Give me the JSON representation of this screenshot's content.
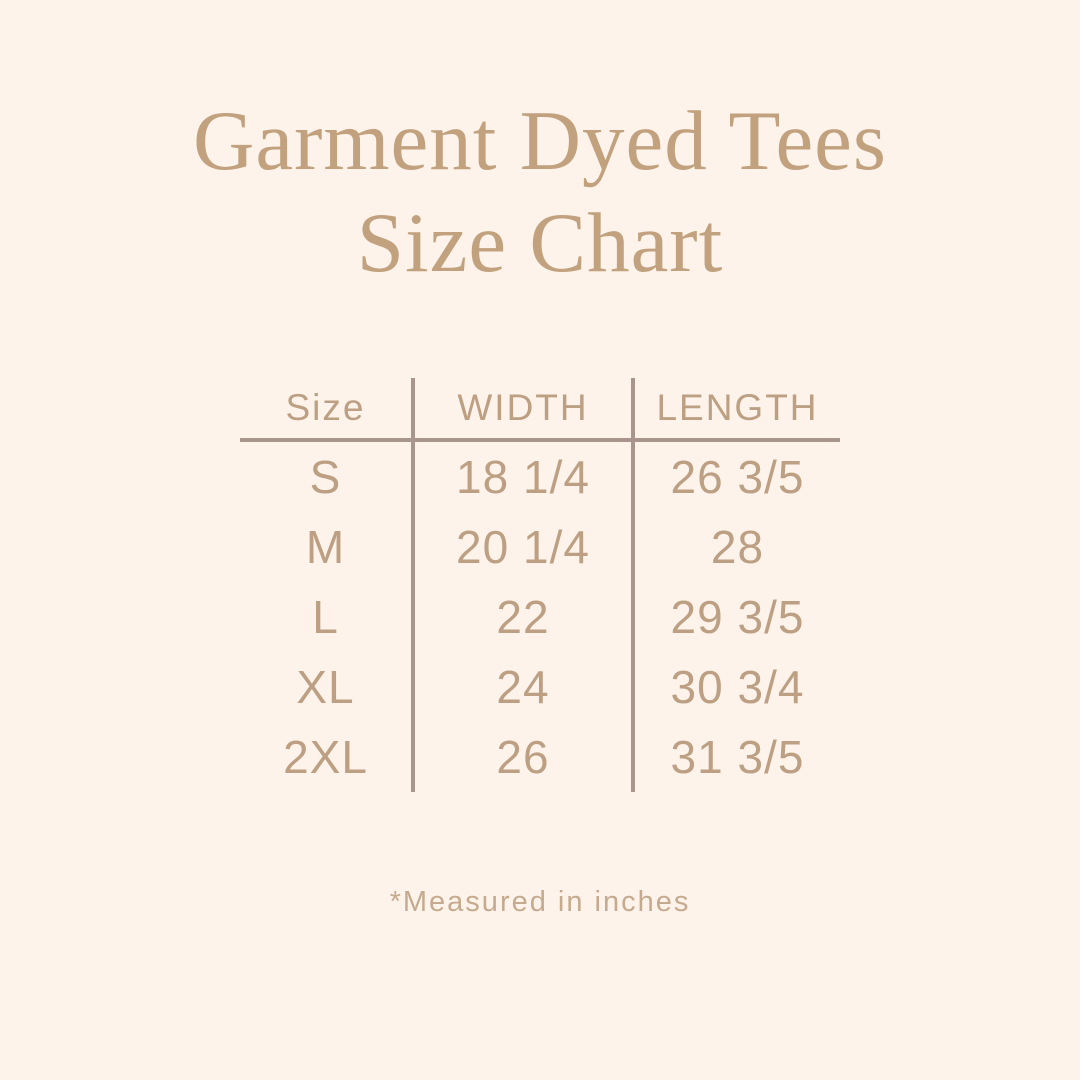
{
  "title": {
    "line1": "Garment Dyed Tees",
    "line2": "Size Chart"
  },
  "table": {
    "headers": [
      "Size",
      "WIDTH",
      "LENGTH"
    ],
    "rows": [
      {
        "size": "S",
        "width": "18 1/4",
        "length": "26 3/5"
      },
      {
        "size": "M",
        "width": "20 1/4",
        "length": "28"
      },
      {
        "size": "L",
        "width": "22",
        "length": "29 3/5"
      },
      {
        "size": "XL",
        "width": "24",
        "length": "30 3/4"
      },
      {
        "size": "2XL",
        "width": "26",
        "length": "31 3/5"
      }
    ]
  },
  "footnote": "*Measured in inches",
  "colors": {
    "background": "#fdf3ea",
    "title": "#c1a17e",
    "table_text": "#bda083",
    "line": "#a9958b",
    "footnote": "#c6aa8e"
  },
  "chart_data": {
    "type": "table",
    "title": "Garment Dyed Tees Size Chart",
    "columns": [
      "Size",
      "WIDTH",
      "LENGTH"
    ],
    "rows": [
      [
        "S",
        "18 1/4",
        "26 3/5"
      ],
      [
        "M",
        "20 1/4",
        "28"
      ],
      [
        "L",
        "22",
        "29 3/5"
      ],
      [
        "XL",
        "24",
        "30 3/4"
      ],
      [
        "2XL",
        "26",
        "31 3/5"
      ]
    ],
    "units": "inches",
    "note": "*Measured in inches"
  }
}
